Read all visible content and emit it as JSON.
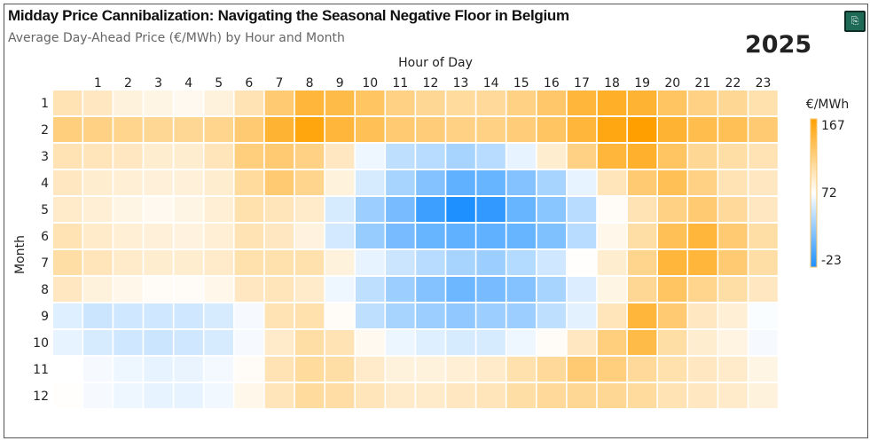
{
  "header": {
    "title": "Midday Price Cannibalization: Navigating the Seasonal Negative Floor in Belgium",
    "subtitle": "Average Day-Ahead Price (€/MWh) by Hour and Month",
    "year": "2025",
    "export_icon": "export-icon"
  },
  "chart_data": {
    "type": "heatmap",
    "xlabel": "Hour of Day",
    "ylabel": "Month",
    "x": [
      0,
      1,
      2,
      3,
      4,
      5,
      6,
      7,
      8,
      9,
      10,
      11,
      12,
      13,
      14,
      15,
      16,
      17,
      18,
      19,
      20,
      21,
      22,
      23
    ],
    "x_tick_labels": [
      "",
      "1",
      "2",
      "3",
      "4",
      "5",
      "6",
      "7",
      "8",
      "9",
      "10",
      "11",
      "12",
      "13",
      "14",
      "15",
      "16",
      "17",
      "18",
      "19",
      "20",
      "21",
      "22",
      "23"
    ],
    "y": [
      "1",
      "2",
      "3",
      "4",
      "5",
      "6",
      "7",
      "8",
      "9",
      "10",
      "11",
      "12"
    ],
    "values": [
      [
        100,
        95,
        85,
        82,
        78,
        85,
        100,
        125,
        145,
        140,
        130,
        118,
        112,
        108,
        110,
        118,
        128,
        145,
        152,
        148,
        130,
        118,
        112,
        102
      ],
      [
        120,
        118,
        115,
        112,
        112,
        115,
        125,
        148,
        162,
        145,
        135,
        125,
        122,
        118,
        118,
        122,
        130,
        145,
        160,
        167,
        148,
        138,
        135,
        125
      ],
      [
        100,
        98,
        95,
        90,
        90,
        98,
        120,
        125,
        118,
        95,
        65,
        45,
        42,
        35,
        42,
        62,
        90,
        118,
        145,
        150,
        130,
        112,
        105,
        100
      ],
      [
        95,
        90,
        88,
        86,
        86,
        90,
        108,
        125,
        115,
        85,
        55,
        35,
        20,
        5,
        8,
        20,
        35,
        62,
        98,
        125,
        135,
        118,
        100,
        95
      ],
      [
        92,
        88,
        82,
        78,
        82,
        88,
        102,
        98,
        92,
        55,
        30,
        15,
        -10,
        -23,
        -15,
        8,
        22,
        42,
        75,
        100,
        118,
        125,
        110,
        95
      ],
      [
        100,
        92,
        88,
        86,
        84,
        88,
        100,
        95,
        84,
        53,
        28,
        15,
        8,
        5,
        5,
        8,
        18,
        42,
        80,
        105,
        135,
        145,
        125,
        105
      ],
      [
        105,
        98,
        92,
        90,
        90,
        92,
        102,
        102,
        102,
        85,
        62,
        50,
        42,
        35,
        30,
        40,
        52,
        73,
        90,
        115,
        145,
        145,
        125,
        105
      ],
      [
        95,
        85,
        80,
        75,
        75,
        80,
        95,
        98,
        92,
        65,
        45,
        30,
        20,
        10,
        15,
        20,
        35,
        57,
        82,
        112,
        130,
        115,
        105,
        95
      ],
      [
        58,
        50,
        52,
        52,
        52,
        55,
        68,
        100,
        102,
        75,
        45,
        35,
        30,
        25,
        30,
        30,
        45,
        60,
        98,
        145,
        125,
        95,
        88,
        70
      ],
      [
        62,
        55,
        52,
        50,
        52,
        55,
        68,
        92,
        105,
        100,
        78,
        64,
        58,
        55,
        55,
        65,
        75,
        95,
        120,
        140,
        105,
        90,
        83,
        68
      ],
      [
        72,
        68,
        65,
        62,
        63,
        67,
        75,
        100,
        108,
        105,
        92,
        85,
        85,
        88,
        92,
        102,
        110,
        125,
        120,
        110,
        102,
        95,
        92,
        82
      ],
      [
        73,
        68,
        65,
        62,
        62,
        66,
        80,
        98,
        108,
        106,
        98,
        92,
        92,
        95,
        98,
        105,
        110,
        112,
        112,
        108,
        100,
        95,
        92,
        85
      ]
    ],
    "colorbar": {
      "label": "€/MWh",
      "min": -23,
      "mid": 72,
      "max": 167,
      "tick_labels": [
        "167",
        "72",
        "-23"
      ],
      "min_color": "#1E90FF",
      "mid_color": "#FFFFFF",
      "max_color": "#FFA000"
    },
    "grid": false,
    "legend": "right"
  }
}
